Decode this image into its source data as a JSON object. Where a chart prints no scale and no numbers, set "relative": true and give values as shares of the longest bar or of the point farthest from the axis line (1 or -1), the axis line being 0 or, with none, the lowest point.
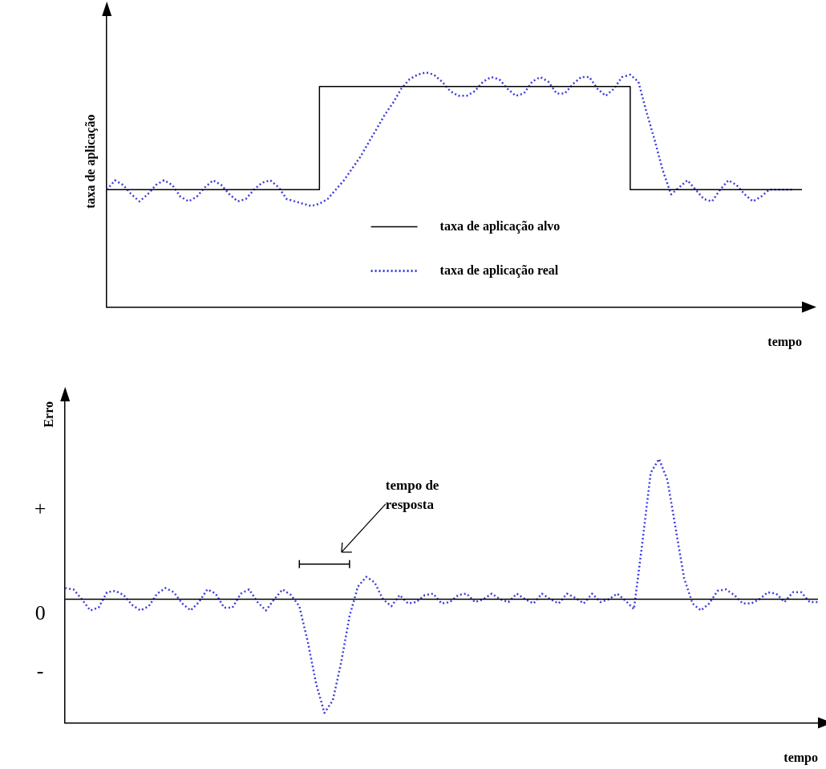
{
  "chart_data": [
    {
      "type": "line",
      "relative": true,
      "ylabel": "taxa de aplicação",
      "xlabel": "tempo",
      "grid": false,
      "legend": "bottom",
      "marker": "none",
      "ylim": [
        0,
        1.24
      ],
      "categories": [
        null,
        null,
        null,
        null,
        null,
        null,
        null,
        null,
        null,
        null,
        null,
        null,
        null,
        null,
        null,
        null,
        null,
        null,
        null,
        null,
        null,
        null,
        null,
        null,
        null,
        null,
        null,
        null,
        null,
        null,
        null,
        null,
        null,
        null,
        null,
        null,
        null,
        null,
        null,
        null,
        null,
        null,
        null,
        null,
        null,
        null,
        null,
        null,
        null,
        null,
        null,
        null,
        null,
        null,
        null,
        null,
        null,
        null,
        null,
        null,
        null,
        null,
        null,
        null,
        null,
        null,
        null,
        null,
        null,
        null,
        null,
        null,
        null,
        null,
        null,
        null,
        null,
        null,
        null,
        null,
        null,
        null,
        null,
        null,
        null,
        null
      ],
      "series": [
        {
          "name": "taxa de aplicação alvo",
          "type": "step",
          "color": "#000000",
          "line_style": "solid",
          "values": [
            0.5,
            0.5,
            0.5,
            0.5,
            0.5,
            0.5,
            0.5,
            0.5,
            0.5,
            0.5,
            0.5,
            0.5,
            0.5,
            0.5,
            0.5,
            0.5,
            0.5,
            0.5,
            0.5,
            0.5,
            0.5,
            0.5,
            0.5,
            0.5,
            0.5,
            0.5,
            0.5,
            0.94,
            0.94,
            0.94,
            0.94,
            0.94,
            0.94,
            0.94,
            0.94,
            0.94,
            0.94,
            0.94,
            0.94,
            0.94,
            0.94,
            0.94,
            0.94,
            0.94,
            0.94,
            0.94,
            0.94,
            0.94,
            0.94,
            0.94,
            0.94,
            0.94,
            0.94,
            0.94,
            0.94,
            0.94,
            0.94,
            0.94,
            0.94,
            0.94,
            0.94,
            0.94,
            0.94,
            0.94,
            0.94,
            0.5,
            0.5,
            0.5,
            0.5,
            0.5,
            0.5,
            0.5,
            0.5,
            0.5,
            0.5,
            0.5,
            0.5,
            0.5,
            0.5,
            0.5,
            0.5,
            0.5,
            0.5,
            0.5,
            0.5,
            0.5
          ]
        },
        {
          "name": "taxa de aplicação real",
          "type": "line",
          "color": "#3c3cdc",
          "line_style": "dotted",
          "values": [
            0.5,
            0.54,
            0.52,
            0.48,
            0.45,
            0.48,
            0.52,
            0.54,
            0.52,
            0.47,
            0.45,
            0.47,
            0.51,
            0.54,
            0.52,
            0.48,
            0.45,
            0.46,
            0.5,
            0.53,
            0.54,
            0.51,
            0.46,
            0.45,
            0.44,
            0.43,
            0.44,
            0.46,
            0.5,
            0.54,
            0.59,
            0.64,
            0.7,
            0.76,
            0.82,
            0.87,
            0.93,
            0.97,
            0.99,
            1,
            0.99,
            0.96,
            0.92,
            0.9,
            0.9,
            0.92,
            0.96,
            0.98,
            0.97,
            0.93,
            0.9,
            0.91,
            0.96,
            0.98,
            0.96,
            0.91,
            0.91,
            0.95,
            0.98,
            0.98,
            0.93,
            0.9,
            0.93,
            0.98,
            0.99,
            0.96,
            0.83,
            0.71,
            0.58,
            0.48,
            0.51,
            0.54,
            0.5,
            0.46,
            0.45,
            0.5,
            0.54,
            0.52,
            0.48,
            0.45,
            0.47,
            0.5,
            0.5,
            0.5,
            0.5,
            null
          ]
        }
      ]
    },
    {
      "type": "line",
      "relative": true,
      "ylabel": "Erro",
      "xlabel": "tempo",
      "grid": false,
      "legend": false,
      "marker": "none",
      "line_style": "dotted",
      "ylim": [
        -0.88,
        1.41
      ],
      "ref_lines": [
        {
          "axis": "y",
          "value": 0,
          "color": "#000000"
        }
      ],
      "annotations": [
        "tempo de resposta",
        "+",
        "0",
        "-"
      ],
      "categories": [
        null,
        null,
        null,
        null,
        null,
        null,
        null,
        null,
        null,
        null,
        null,
        null,
        null,
        null,
        null,
        null,
        null,
        null,
        null,
        null,
        null,
        null,
        null,
        null,
        null,
        null,
        null,
        null,
        null,
        null,
        null,
        null,
        null,
        null,
        null,
        null,
        null,
        null,
        null,
        null,
        null,
        null,
        null,
        null,
        null,
        null,
        null,
        null,
        null,
        null,
        null,
        null,
        null,
        null,
        null,
        null,
        null,
        null,
        null,
        null,
        null,
        null,
        null,
        null,
        null,
        null,
        null,
        null,
        null,
        null,
        null,
        null,
        null,
        null,
        null,
        null,
        null,
        null,
        null,
        null,
        null,
        null,
        null,
        null,
        null,
        null,
        null,
        null,
        null,
        null,
        null
      ],
      "series": [
        {
          "color": "#3c3cdc",
          "values": [
            0.08,
            0.07,
            0.0,
            -0.08,
            -0.06,
            0.05,
            0.06,
            0.03,
            -0.04,
            -0.08,
            -0.05,
            0.04,
            0.08,
            0.05,
            -0.03,
            -0.08,
            -0.02,
            0.07,
            0.04,
            -0.06,
            -0.06,
            0.04,
            0.07,
            -0.02,
            -0.08,
            0,
            0.07,
            0.03,
            -0.05,
            -0.3,
            -0.6,
            -0.81,
            -0.72,
            -0.45,
            -0.12,
            0.09,
            0.16,
            0.12,
            0.0,
            -0.05,
            0.03,
            -0.03,
            -0.02,
            0.03,
            0.04,
            -0.03,
            -0.02,
            0.03,
            0.04,
            -0.02,
            0.0,
            0.04,
            0.0,
            -0.02,
            0.04,
            0.0,
            -0.03,
            0.04,
            0.0,
            -0.03,
            0.04,
            0.01,
            -0.03,
            0.04,
            -0.02,
            0.0,
            0.04,
            -0.01,
            -0.07,
            0.4,
            0.9,
            1,
            0.85,
            0.5,
            0.15,
            -0.03,
            -0.08,
            -0.03,
            0.06,
            0.07,
            0.03,
            -0.03,
            -0.03,
            0.0,
            0.05,
            0.04,
            -0.02,
            0.05,
            0.05,
            -0.02,
            -0.02
          ]
        }
      ]
    }
  ]
}
